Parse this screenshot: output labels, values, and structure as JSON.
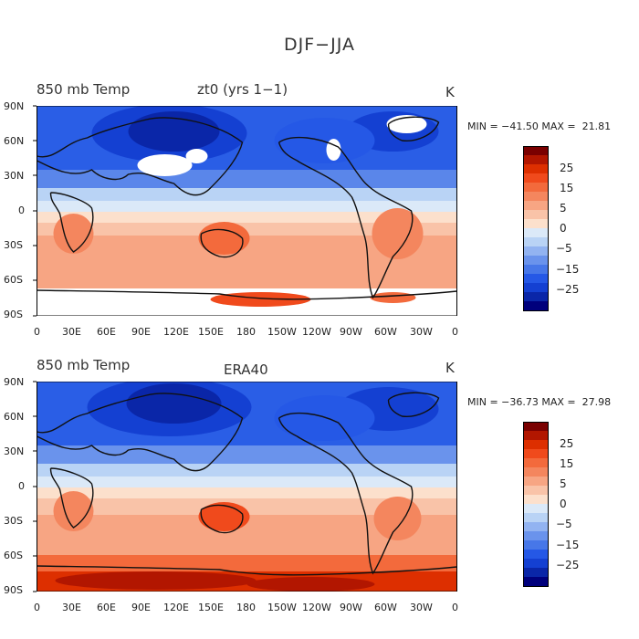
{
  "figure_title": "DJF−JJA",
  "panels": [
    {
      "variable": "850 mb Temp",
      "case": "zt0 (yrs 1−1)",
      "units": "K",
      "stats": "MIN = −41.50 MAX =  21.81"
    },
    {
      "variable": "850 mb Temp",
      "case": "ERA40",
      "units": "K",
      "stats": "MIN = −36.73 MAX =  27.98"
    }
  ],
  "lat_ticks": [
    "90N",
    "60N",
    "30N",
    "0",
    "30S",
    "60S",
    "90S"
  ],
  "lon_ticks": [
    "0",
    "30E",
    "60E",
    "90E",
    "120E",
    "150E",
    "180",
    "150W",
    "120W",
    "90W",
    "60W",
    "30W",
    "0"
  ],
  "colorbar": {
    "labels": [
      "25",
      "15",
      "5",
      "0",
      "−5",
      "−15",
      "−25"
    ],
    "colors": [
      "#7a0000",
      "#b21600",
      "#dd2f00",
      "#f04a1c",
      "#f36a3c",
      "#f4865e",
      "#f7a583",
      "#f9c3a8",
      "#fce0cc",
      "#dbe9f8",
      "#b9d3f5",
      "#92b3f1",
      "#6a93ec",
      "#4777e8",
      "#2558e6",
      "#1440d2",
      "#0a26a8",
      "#00007c"
    ]
  }
}
